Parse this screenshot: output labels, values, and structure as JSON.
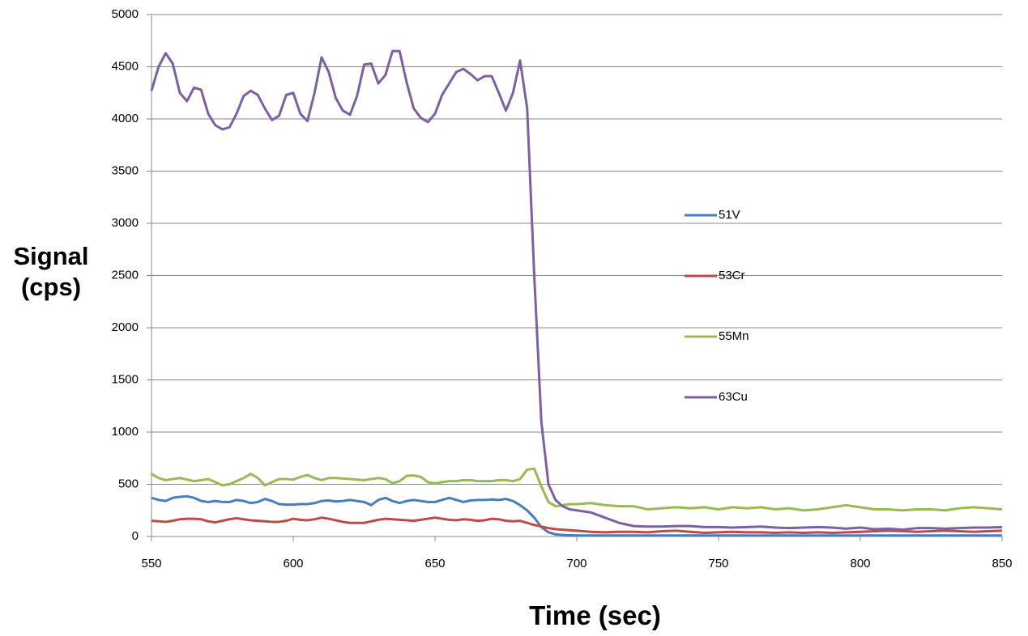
{
  "chart_data": {
    "type": "line",
    "x_label": "Time (sec)",
    "y_label": "Signal (cps)",
    "x": [
      550,
      552.5,
      555,
      557.5,
      560,
      562.5,
      565,
      567.5,
      570,
      572.5,
      575,
      577.5,
      580,
      582.5,
      585,
      587.5,
      590,
      592.5,
      595,
      597.5,
      600,
      602.5,
      605,
      607.5,
      610,
      612.5,
      615,
      617.5,
      620,
      622.5,
      625,
      627.5,
      630,
      632.5,
      635,
      637.5,
      640,
      642.5,
      645,
      647.5,
      650,
      652.5,
      655,
      657.5,
      660,
      662.5,
      665,
      667.5,
      670,
      672.5,
      675,
      677.5,
      680,
      682.5,
      685,
      687.5,
      690,
      692.5,
      695,
      697.5,
      700,
      705,
      710,
      715,
      720,
      725,
      730,
      735,
      740,
      745,
      750,
      755,
      760,
      765,
      770,
      775,
      780,
      785,
      790,
      795,
      800,
      805,
      810,
      815,
      820,
      825,
      830,
      835,
      840,
      845,
      850
    ],
    "series": [
      {
        "name": "51V",
        "color": "#4a7ebb",
        "values": [
          370,
          350,
          340,
          370,
          380,
          385,
          370,
          340,
          330,
          340,
          330,
          330,
          350,
          340,
          320,
          330,
          360,
          340,
          310,
          305,
          305,
          310,
          310,
          320,
          340,
          345,
          335,
          340,
          350,
          340,
          330,
          300,
          350,
          370,
          340,
          320,
          340,
          350,
          340,
          330,
          330,
          350,
          370,
          350,
          330,
          345,
          350,
          350,
          355,
          350,
          360,
          340,
          300,
          250,
          180,
          90,
          40,
          20,
          15,
          12,
          10,
          10,
          10,
          10,
          10,
          10,
          10,
          10,
          10,
          10,
          10,
          10,
          10,
          10,
          10,
          10,
          10,
          10,
          10,
          10,
          10,
          10,
          10,
          10,
          10,
          10,
          10,
          10,
          10,
          10,
          10
        ]
      },
      {
        "name": "53Cr",
        "color": "#be4b48",
        "values": [
          150,
          145,
          140,
          150,
          165,
          170,
          170,
          165,
          145,
          135,
          150,
          165,
          175,
          165,
          155,
          150,
          145,
          140,
          140,
          150,
          170,
          160,
          155,
          165,
          180,
          170,
          155,
          140,
          130,
          130,
          130,
          145,
          160,
          170,
          165,
          160,
          155,
          150,
          160,
          170,
          180,
          170,
          160,
          155,
          165,
          160,
          150,
          155,
          170,
          165,
          150,
          145,
          150,
          130,
          110,
          95,
          80,
          70,
          65,
          60,
          55,
          45,
          40,
          45,
          45,
          40,
          50,
          55,
          45,
          35,
          40,
          45,
          40,
          40,
          35,
          40,
          35,
          40,
          35,
          40,
          45,
          50,
          55,
          50,
          45,
          50,
          55,
          50,
          45,
          50,
          55
        ]
      },
      {
        "name": "55Mn",
        "color": "#98b954",
        "values": [
          600,
          560,
          540,
          550,
          560,
          545,
          530,
          540,
          550,
          520,
          490,
          500,
          530,
          560,
          600,
          560,
          490,
          520,
          550,
          550,
          545,
          570,
          590,
          560,
          540,
          560,
          560,
          555,
          550,
          545,
          540,
          550,
          560,
          550,
          510,
          530,
          580,
          585,
          570,
          520,
          510,
          520,
          530,
          530,
          540,
          540,
          530,
          530,
          530,
          540,
          540,
          530,
          550,
          640,
          650,
          480,
          330,
          290,
          300,
          310,
          310,
          320,
          300,
          290,
          290,
          260,
          270,
          280,
          270,
          280,
          260,
          280,
          270,
          280,
          260,
          270,
          250,
          260,
          280,
          300,
          280,
          260,
          260,
          250,
          260,
          260,
          250,
          270,
          280,
          270,
          260
        ]
      },
      {
        "name": "63Cu",
        "color": "#7d60a0",
        "values": [
          4270,
          4500,
          4630,
          4530,
          4250,
          4170,
          4300,
          4280,
          4050,
          3940,
          3900,
          3920,
          4050,
          4220,
          4270,
          4230,
          4100,
          3990,
          4030,
          4230,
          4250,
          4050,
          3980,
          4250,
          4590,
          4450,
          4200,
          4080,
          4040,
          4220,
          4520,
          4530,
          4340,
          4420,
          4650,
          4650,
          4350,
          4100,
          4010,
          3970,
          4050,
          4230,
          4340,
          4450,
          4480,
          4430,
          4370,
          4410,
          4410,
          4250,
          4080,
          4250,
          4560,
          4100,
          2500,
          1100,
          500,
          350,
          290,
          260,
          250,
          230,
          180,
          130,
          100,
          95,
          95,
          100,
          100,
          90,
          90,
          85,
          90,
          95,
          85,
          80,
          85,
          90,
          85,
          75,
          85,
          70,
          75,
          65,
          80,
          80,
          75,
          80,
          85,
          85,
          90
        ]
      }
    ],
    "xlim": [
      550,
      850
    ],
    "xticks": [
      550,
      600,
      650,
      700,
      750,
      800,
      850
    ],
    "ylim": [
      0,
      5000
    ],
    "yticks": [
      0,
      500,
      1000,
      1500,
      2000,
      2500,
      3000,
      3500,
      4000,
      4500,
      5000
    ],
    "grid": true,
    "legend": "right"
  }
}
